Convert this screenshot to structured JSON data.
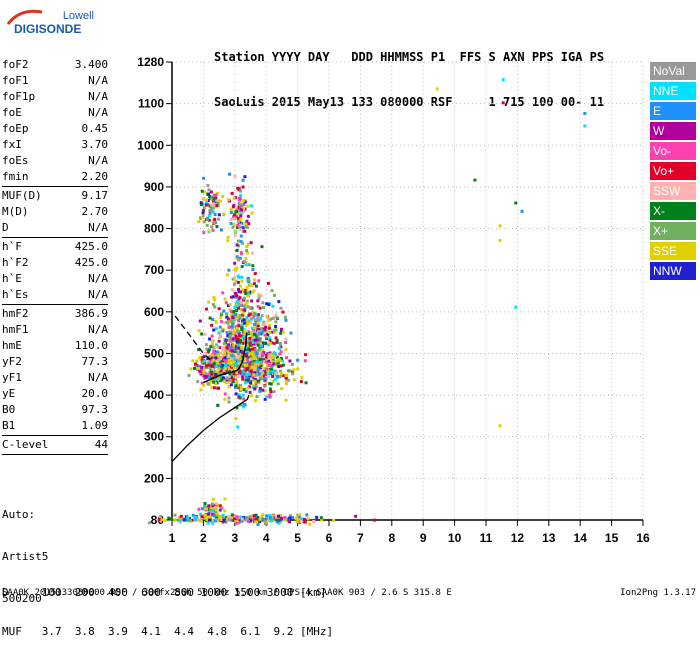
{
  "logo": {
    "brand": "Lowell",
    "product": "DIGISONDE"
  },
  "header": {
    "line1": "Station YYYY DAY   DDD HHMMSS P1  FFS S AXN PPS IGA PS",
    "line2": "SaoLuis 2015 May13 133 080000 RSF     1 715 100 00- 11"
  },
  "params": [
    {
      "label": "foF2",
      "value": "3.400"
    },
    {
      "label": "foF1",
      "value": "N/A"
    },
    {
      "label": "foF1p",
      "value": "N/A"
    },
    {
      "label": "foE",
      "value": "N/A"
    },
    {
      "label": "foEp",
      "value": "0.45"
    },
    {
      "label": "fxI",
      "value": "3.70"
    },
    {
      "label": "foEs",
      "value": "N/A"
    },
    {
      "label": "fmin",
      "value": "2.20"
    },
    {
      "sep": true
    },
    {
      "label": "MUF(D)",
      "value": "9.17"
    },
    {
      "label": "M(D)",
      "value": "2.70"
    },
    {
      "label": "D",
      "value": "N/A"
    },
    {
      "sep": true
    },
    {
      "label": "h`F",
      "value": "425.0"
    },
    {
      "label": "h`F2",
      "value": "425.0"
    },
    {
      "label": "h`E",
      "value": "N/A"
    },
    {
      "label": "h`Es",
      "value": "N/A"
    },
    {
      "sep": true
    },
    {
      "label": "hmF2",
      "value": "386.9"
    },
    {
      "label": "hmF1",
      "value": "N/A"
    },
    {
      "label": "hmE",
      "value": "110.0"
    },
    {
      "label": "yF2",
      "value": "77.3"
    },
    {
      "label": "yF1",
      "value": "N/A"
    },
    {
      "label": "yE",
      "value": "20.0"
    },
    {
      "label": "B0",
      "value": "97.3"
    },
    {
      "label": "B1",
      "value": "1.09"
    },
    {
      "sep": true
    },
    {
      "label": "C-level",
      "value": "44"
    },
    {
      "sep": true
    }
  ],
  "auto": {
    "line1": "Auto:",
    "line2": "Artist5",
    "line3": "500200"
  },
  "muf_table": {
    "row1": "D     100  200  400  600  800 1000 1500 3000 [km]",
    "row2": "MUF   3.7  3.8  3.9  4.1  4.4  4.8  6.1  9.2 [MHz]"
  },
  "footer": {
    "left": "SAA0K_2015133080000.RSF / 300fx256h 50 kHz 5.0 km / DPS-4 SAA0K 903 / 2.6 S 315.8 E",
    "right": "Ion2Png 1.3.17"
  },
  "legend": [
    {
      "label": "NoVal",
      "color": "#999999"
    },
    {
      "label": "NNE",
      "color": "#00e0ff"
    },
    {
      "label": "E",
      "color": "#1e90ff"
    },
    {
      "label": "W",
      "color": "#b0009c"
    },
    {
      "label": "Vo-",
      "color": "#ff40b0"
    },
    {
      "label": "Vo+",
      "color": "#e0002a"
    },
    {
      "label": "SSW",
      "color": "#ffb0b0"
    },
    {
      "label": "X-",
      "color": "#00801a"
    },
    {
      "label": "X+",
      "color": "#70b060"
    },
    {
      "label": "SSE",
      "color": "#e0d000"
    },
    {
      "label": "NNW",
      "color": "#2020d0"
    }
  ],
  "chart_data": {
    "type": "scatter",
    "title": "",
    "xlabel": "",
    "ylabel": "",
    "xlim": [
      1,
      16
    ],
    "ylim": [
      80,
      1280
    ],
    "x_ticks": [
      "1",
      "2",
      "3",
      "4",
      "5",
      "6",
      "7",
      "8",
      "9",
      "10",
      "11",
      "12",
      "13",
      "14",
      "15",
      "16"
    ],
    "y_ticks": [
      "80",
      "200",
      "300",
      "400",
      "500",
      "600",
      "700",
      "800",
      "900",
      "1000",
      "1100",
      "1280"
    ],
    "y_tick_values": [
      80,
      200,
      300,
      400,
      500,
      600,
      700,
      800,
      900,
      1000,
      1100,
      1280
    ],
    "grid": true,
    "legend_position": "right",
    "profile_line": [
      [
        1.0,
        240
      ],
      [
        1.5,
        280
      ],
      [
        2.0,
        315
      ],
      [
        2.5,
        345
      ],
      [
        2.9,
        365
      ],
      [
        3.2,
        380
      ],
      [
        3.4,
        390
      ],
      [
        3.45,
        400
      ]
    ],
    "trace_solid": [
      [
        2.0,
        430
      ],
      [
        2.3,
        440
      ],
      [
        2.6,
        450
      ],
      [
        2.9,
        455
      ],
      [
        3.1,
        460
      ],
      [
        3.25,
        480
      ],
      [
        3.35,
        520
      ],
      [
        3.38,
        550
      ]
    ],
    "trace_dashed": [
      [
        1.1,
        590
      ],
      [
        1.4,
        560
      ],
      [
        1.7,
        530
      ],
      [
        2.0,
        500
      ],
      [
        2.3,
        480
      ]
    ],
    "isolated_points": [
      {
        "x": 9.4,
        "y": 1170,
        "color": "#e0d000"
      },
      {
        "x": 11.5,
        "y": 1210,
        "color": "#00e0ff"
      },
      {
        "x": 11.5,
        "y": 1110,
        "color": "#e0002a"
      },
      {
        "x": 14.1,
        "y": 1080,
        "color": "#1e90ff"
      },
      {
        "x": 14.1,
        "y": 1050,
        "color": "#00e0ff"
      },
      {
        "x": 10.6,
        "y": 920,
        "color": "#00801a"
      },
      {
        "x": 11.9,
        "y": 865,
        "color": "#00801a"
      },
      {
        "x": 12.1,
        "y": 845,
        "color": "#1e90ff"
      },
      {
        "x": 11.4,
        "y": 810,
        "color": "#e0d000"
      },
      {
        "x": 11.4,
        "y": 775,
        "color": "#e0d000"
      },
      {
        "x": 11.9,
        "y": 615,
        "color": "#00e0ff"
      },
      {
        "x": 11.4,
        "y": 330,
        "color": "#e0d000"
      },
      {
        "x": 6.8,
        "y": 95,
        "color": "#b0009c"
      },
      {
        "x": 7.4,
        "y": 84,
        "color": "#e0002a"
      }
    ]
  }
}
